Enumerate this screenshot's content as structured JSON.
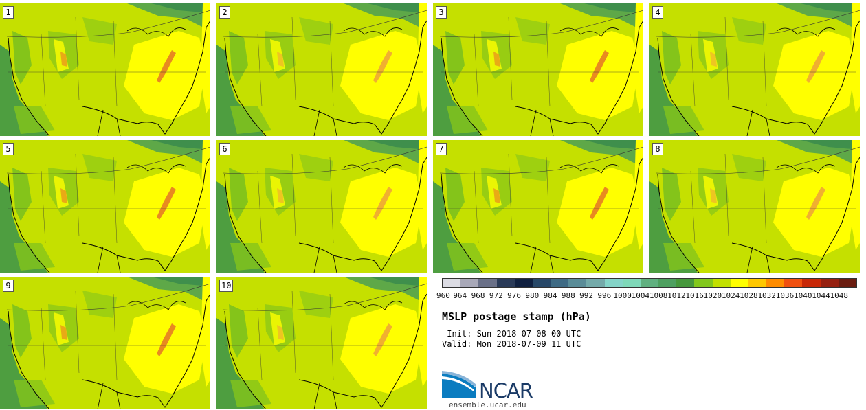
{
  "panels": [
    {
      "label": "1"
    },
    {
      "label": "2"
    },
    {
      "label": "3"
    },
    {
      "label": "4"
    },
    {
      "label": "5"
    },
    {
      "label": "6"
    },
    {
      "label": "7"
    },
    {
      "label": "8"
    },
    {
      "label": "9"
    },
    {
      "label": "10"
    }
  ],
  "colorbar": {
    "ticks": [
      "960",
      "964",
      "968",
      "972",
      "976",
      "980",
      "984",
      "988",
      "992",
      "996",
      "1000",
      "1004",
      "1008",
      "1012",
      "1016",
      "1020",
      "1024",
      "1028",
      "1032",
      "1036",
      "1040",
      "1044",
      "1048"
    ],
    "colors": [
      "#dcdce4",
      "#a8a8b8",
      "#6a7088",
      "#2a3a58",
      "#102040",
      "#284868",
      "#3e6a84",
      "#5a8c98",
      "#74aaaa",
      "#84d4c8",
      "#7ed8b8",
      "#60b080",
      "#4ea060",
      "#46983c",
      "#82c81c",
      "#c2e000",
      "#ffff00",
      "#ffc800",
      "#ff8c00",
      "#f05010",
      "#c82808",
      "#962010",
      "#6a1c10"
    ]
  },
  "title": "MSLP postage stamp (hPa)",
  "init": " Init: Sun 2018-07-08 00 UTC",
  "valid": "Valid: Mon 2018-07-09 11 UTC",
  "logo": {
    "text": "NCAR",
    "url": "ensemble.ucar.edu"
  },
  "map_colors": {
    "ocean": "#4e9e40",
    "dark_green": "#5ea848",
    "mid_green": "#84c41a",
    "yellow_green": "#c5e000",
    "yellow": "#ffff00",
    "orange": "#f0a020",
    "coast": "#000000"
  }
}
